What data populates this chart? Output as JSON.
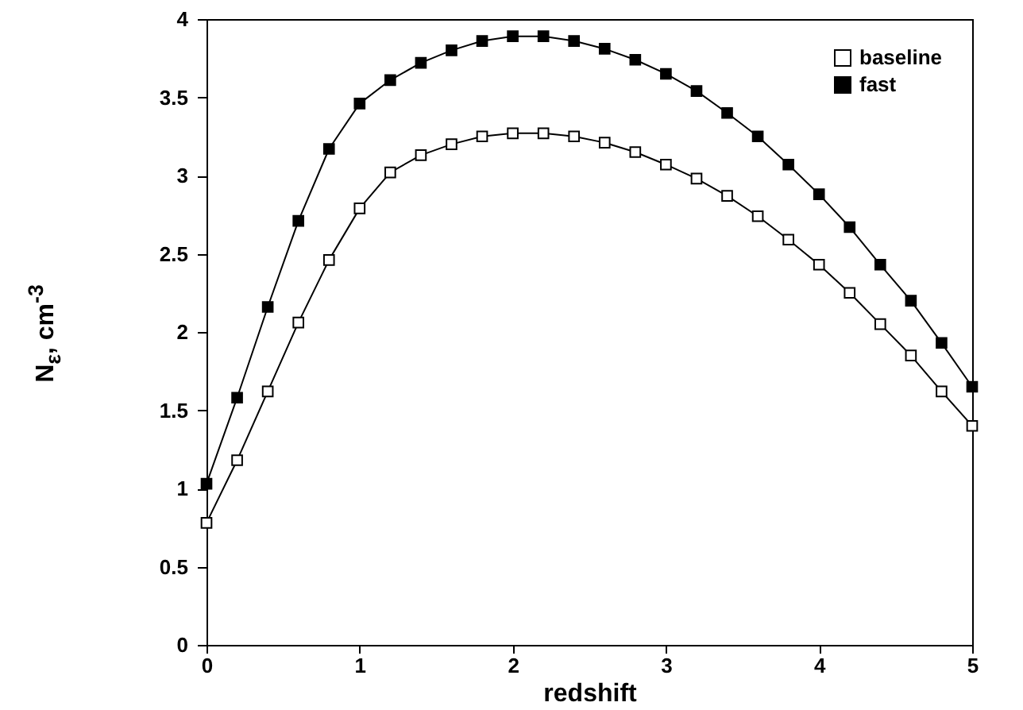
{
  "chart_data": {
    "type": "line",
    "xlabel": "redshift",
    "ylabel": "N$_{ε}$, cm$^{-3}$",
    "x": [
      0,
      0.2,
      0.4,
      0.6,
      0.8,
      1,
      1.2,
      1.4,
      1.6,
      1.8,
      2,
      2.2,
      2.4,
      2.6,
      2.8,
      3,
      3.2,
      3.4,
      3.6,
      3.8,
      4,
      4.2,
      4.4,
      4.6,
      4.8,
      5
    ],
    "series": [
      {
        "name": "baseline",
        "color": "#000000",
        "values": [
          0.78,
          1.18,
          1.62,
          2.06,
          2.46,
          2.79,
          3.02,
          3.13,
          3.2,
          3.25,
          3.27,
          3.27,
          3.25,
          3.21,
          3.15,
          3.07,
          2.98,
          2.87,
          2.74,
          2.59,
          2.43,
          2.25,
          2.05,
          1.85,
          1.62,
          1.4
        ]
      },
      {
        "name": "fast",
        "color": "#000000",
        "values": [
          1.03,
          1.58,
          2.16,
          2.71,
          3.17,
          3.46,
          3.61,
          3.72,
          3.8,
          3.86,
          3.89,
          3.89,
          3.86,
          3.81,
          3.74,
          3.65,
          3.54,
          3.4,
          3.25,
          3.07,
          2.88,
          2.67,
          2.43,
          2.2,
          1.93,
          1.65
        ]
      }
    ],
    "xlim": [
      0,
      5.0
    ],
    "xticks": [
      0,
      1,
      2,
      3,
      4,
      5
    ],
    "ylim": [
      0,
      4
    ],
    "yticks": [
      0,
      0.5,
      1,
      1.5,
      2,
      2.5,
      3,
      3.5,
      4
    ],
    "grid": false,
    "legend": "top right",
    "marker": "square",
    "line_style": "solid"
  }
}
